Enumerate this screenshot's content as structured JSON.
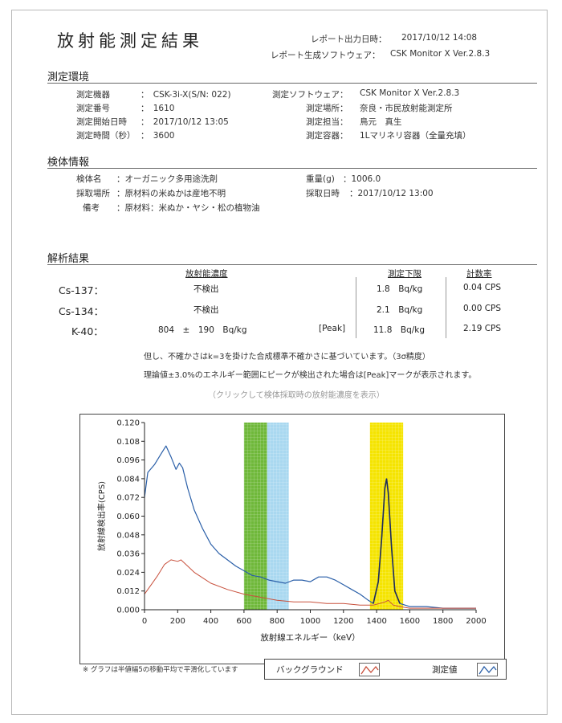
{
  "report": {
    "title": "放射能測定結果",
    "output_label": "レポート出力日時：",
    "output_value": "2017/10/12 14:08",
    "software_label": "レポート生成ソフトウェア：",
    "software_value": "CSK Monitor X Ver.2.8.3"
  },
  "measurement_env": {
    "heading": "測定環境",
    "rows": [
      {
        "label": "測定機器",
        "value": "：　CSK-3i-X(S/N: 022)"
      },
      {
        "label": "測定番号",
        "value": "：　1610"
      },
      {
        "label": "測定開始日時",
        "value": "：　2017/10/12 13:05"
      },
      {
        "label": "測定時間（秒）",
        "value": "：　3600"
      }
    ],
    "right_rows": [
      {
        "label": "測定ソフトウェア：",
        "value": "CSK Monitor X Ver.2.8.3"
      },
      {
        "label": "測定場所：",
        "value": "奈良・市民放射能測定所"
      },
      {
        "label": "測定担当：",
        "value": "鳥元　真生"
      },
      {
        "label": "測定容器：",
        "value": "1Lマリネリ容器（全量充填）"
      }
    ]
  },
  "sample_info": {
    "heading": "検体情報",
    "rows": [
      {
        "label": "検体名",
        "value": "：オーガニック多用途洗剤"
      },
      {
        "label": "採取場所",
        "value": "：原材料の米ぬかは産地不明"
      },
      {
        "label": "備考",
        "value": "：原材料：米ぬか・ヤシ・松の植物油"
      }
    ],
    "right_rows": [
      {
        "label": "重量(g)",
        "value": "：1006.0"
      },
      {
        "label": "採取日時",
        "value": "：2017/10/12 13:00"
      }
    ]
  },
  "analysis": {
    "heading": "解析結果",
    "col_conc": "放射能濃度",
    "col_limit": "測定下限",
    "col_rate": "計数率",
    "rows": [
      {
        "nuclide": "Cs-137：",
        "conc": "不検出",
        "peak": "",
        "limit": "1.8　Bq/kg",
        "rate": "0.04 CPS"
      },
      {
        "nuclide": "Cs-134：",
        "conc": "不検出",
        "peak": "",
        "limit": "2.1　Bq/kg",
        "rate": "0.00 CPS"
      },
      {
        "nuclide": "K-40：",
        "conc": "804　±　190　Bq/kg",
        "peak": "[Peak]",
        "limit": "11.8　Bq/kg",
        "rate": "2.19 CPS"
      }
    ],
    "note1": "但し、不確かさはk=3を掛けた合成標準不確かさに基づいています。（3σ精度）",
    "note2": "理論値±3.0%のエネルギー範囲にピークが検出された場合は[Peak]マークが表示されます。",
    "link_hint": "（クリックして検体採取時の放射能濃度を表示）"
  },
  "chart_data": {
    "type": "line",
    "title": "",
    "xlabel": "放射線エネルギー（keV）",
    "ylabel": "放射線検出率(CPS)",
    "xlim": [
      0,
      2000
    ],
    "ylim": [
      0,
      0.12
    ],
    "x_ticks": [
      "0",
      "200",
      "400",
      "600",
      "800",
      "1000",
      "1200",
      "1400",
      "1600",
      "1800",
      "2000"
    ],
    "y_ticks": [
      "0.000",
      "0.012",
      "0.024",
      "0.036",
      "0.048",
      "0.060",
      "0.072",
      "0.084",
      "0.096",
      "0.108",
      "0.120"
    ],
    "grid": false,
    "bands": [
      {
        "x0": 600,
        "x1": 740,
        "color": "#6fb83a"
      },
      {
        "x0": 740,
        "x1": 870,
        "color": "#a9d8f0"
      },
      {
        "x0": 1360,
        "x1": 1560,
        "color": "#f5e400"
      }
    ],
    "series": [
      {
        "name": "測定値",
        "color": "#2a5fa8",
        "x": [
          0,
          20,
          60,
          100,
          130,
          160,
          190,
          210,
          230,
          260,
          300,
          350,
          400,
          450,
          500,
          550,
          600,
          650,
          700,
          750,
          800,
          850,
          900,
          950,
          1000,
          1050,
          1100,
          1150,
          1200,
          1250,
          1300,
          1350,
          1380,
          1410,
          1430,
          1450,
          1460,
          1470,
          1490,
          1510,
          1540,
          1600,
          1700,
          1800,
          1900,
          2000
        ],
        "y": [
          0.072,
          0.088,
          0.093,
          0.1,
          0.105,
          0.098,
          0.09,
          0.094,
          0.091,
          0.078,
          0.064,
          0.052,
          0.042,
          0.036,
          0.032,
          0.028,
          0.025,
          0.022,
          0.021,
          0.019,
          0.018,
          0.017,
          0.019,
          0.019,
          0.018,
          0.021,
          0.021,
          0.019,
          0.016,
          0.013,
          0.01,
          0.006,
          0.004,
          0.018,
          0.045,
          0.078,
          0.084,
          0.075,
          0.04,
          0.012,
          0.004,
          0.002,
          0.002,
          0.001,
          0.001,
          0.001
        ]
      },
      {
        "name": "バックグラウンド",
        "color": "#c8503c",
        "x": [
          0,
          40,
          80,
          120,
          160,
          200,
          220,
          260,
          300,
          400,
          500,
          600,
          700,
          800,
          900,
          1000,
          1100,
          1200,
          1300,
          1380,
          1420,
          1450,
          1470,
          1500,
          1540,
          1600,
          1800,
          2000
        ],
        "y": [
          0.01,
          0.016,
          0.022,
          0.029,
          0.032,
          0.031,
          0.032,
          0.028,
          0.024,
          0.017,
          0.013,
          0.01,
          0.008,
          0.006,
          0.005,
          0.005,
          0.004,
          0.004,
          0.003,
          0.003,
          0.004,
          0.005,
          0.006,
          0.003,
          0.002,
          0.001,
          0.001,
          0.001
        ]
      }
    ]
  },
  "footer": {
    "note": "※ グラフは半値幅5の移動平均で平滑化しています",
    "legend_bg": "バックグラウンド",
    "legend_meas": "測定値"
  }
}
